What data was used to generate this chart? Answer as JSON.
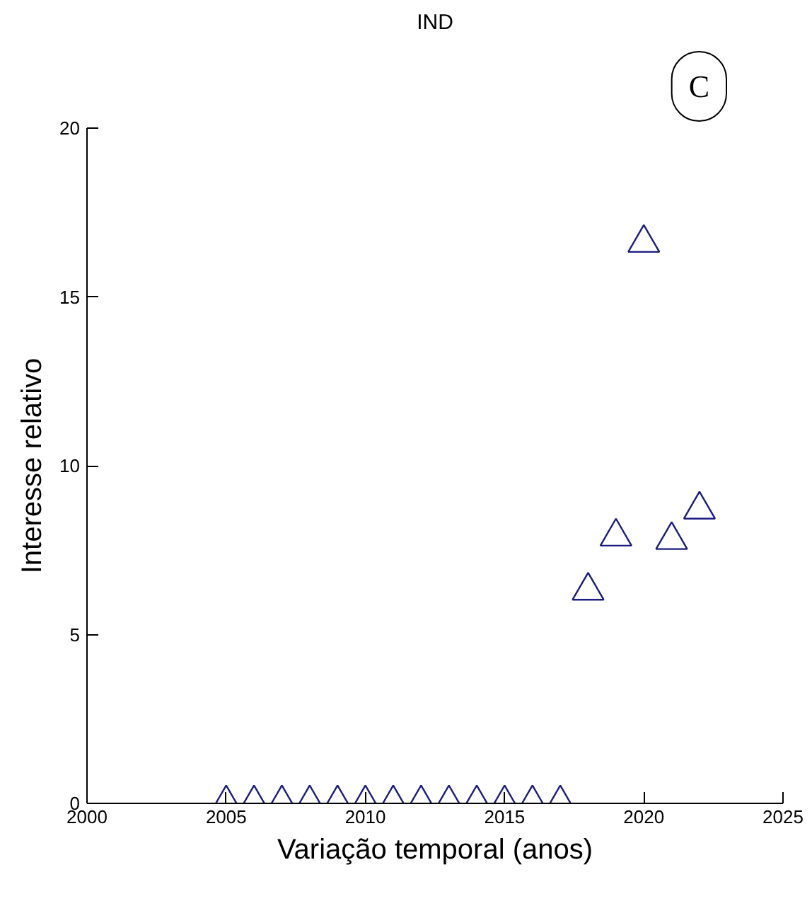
{
  "chart_data": {
    "type": "scatter",
    "title": "IND",
    "xlabel": "Variação temporal (anos)",
    "ylabel": "Interesse relativo",
    "annotations": [
      "C"
    ],
    "x": [
      2005,
      2006,
      2007,
      2008,
      2009,
      2010,
      2011,
      2012,
      2013,
      2014,
      2015,
      2016,
      2017,
      2018,
      2019,
      2020,
      2021,
      2022
    ],
    "series": [
      {
        "color": "#1c1c80",
        "values": [
          0,
          0,
          0,
          0,
          0,
          0,
          0,
          0,
          0,
          0,
          0,
          0,
          0,
          6.3,
          7.9,
          16.6,
          7.8,
          8.7
        ]
      }
    ],
    "marker": "triangle",
    "xlim": [
      2000,
      2025
    ],
    "ylim": [
      0,
      20
    ],
    "xticks": [
      2000,
      2005,
      2010,
      2015,
      2020,
      2025
    ],
    "yticks": [
      0,
      5,
      10,
      15,
      20
    ],
    "grid": false
  }
}
